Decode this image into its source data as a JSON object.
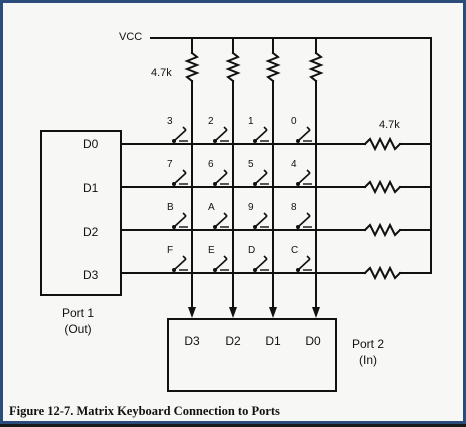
{
  "diagram": {
    "vcc_label": "VCC",
    "column_resistor_label": "4.7k",
    "row_resistor_label": "4.7k",
    "port1": {
      "title": "Port 1",
      "mode": "(Out)",
      "pins": [
        "D0",
        "D1",
        "D2",
        "D3"
      ]
    },
    "port2": {
      "title": "Port 2",
      "mode": "(In)",
      "pins": [
        "D3",
        "D2",
        "D1",
        "D0"
      ]
    },
    "keys": [
      [
        "3",
        "2",
        "1",
        "0"
      ],
      [
        "7",
        "6",
        "5",
        "4"
      ],
      [
        "B",
        "A",
        "9",
        "8"
      ],
      [
        "F",
        "E",
        "D",
        "C"
      ]
    ],
    "caption": "Figure 12-7. Matrix Keyboard Connection to Ports"
  }
}
